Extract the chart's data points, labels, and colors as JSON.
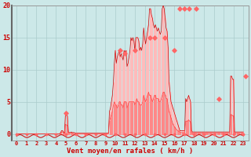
{
  "bg_color": "#cce8e8",
  "grid_color": "#aacccc",
  "xlabel": "Vent moyen/en rafales ( km/h )",
  "xlabel_color": "#cc0000",
  "ylim": [
    -1,
    20
  ],
  "yticks": [
    0,
    5,
    10,
    15,
    20
  ],
  "ytick_labels": [
    "0",
    "5",
    "10",
    "15",
    "20"
  ],
  "xlim": [
    -0.5,
    23.5
  ],
  "xticks": [
    0,
    1,
    2,
    3,
    4,
    5,
    6,
    7,
    8,
    9,
    10,
    11,
    12,
    13,
    14,
    15,
    16,
    17,
    18,
    19,
    20,
    21,
    22,
    23
  ],
  "color_gust_fill": "#ffbbbb",
  "color_avg_fill": "#ff8888",
  "color_line": "#cc0000",
  "color_marker": "#ff6666",
  "color_dark_marker": "#cc0000",
  "wave_color": "#cc0000",
  "left_spine_color": "#666666",
  "n_points": 240,
  "hours_per_point": 0.1,
  "gust_envelope": [
    0,
    0,
    0,
    0,
    0,
    0,
    0,
    0,
    0,
    0,
    0,
    0,
    0,
    0,
    0,
    0,
    0,
    0,
    0,
    0,
    0,
    0,
    0,
    0,
    0,
    0,
    0,
    0,
    0,
    0,
    0,
    0,
    0,
    0,
    0,
    0,
    0,
    0,
    0,
    0,
    0,
    0,
    0,
    0,
    0,
    0.2,
    0.5,
    0.5,
    0.3,
    0.1,
    3.2,
    3.0,
    2.8,
    0.3,
    0.2,
    0.2,
    0.3,
    0.2,
    0.2,
    0.2,
    0.1,
    0.1,
    0.1,
    0.1,
    0.1,
    0.1,
    0.1,
    0.1,
    0.1,
    0.1,
    0.1,
    0.1,
    0.1,
    0.1,
    0.1,
    0.1,
    0.1,
    0.1,
    0.1,
    0.1,
    0.1,
    0.1,
    0.1,
    0.1,
    0.1,
    0.1,
    0.1,
    0.1,
    0.1,
    0.1,
    0.1,
    0.1,
    0.1,
    0.1,
    0.1,
    3.5,
    4.0,
    5.0,
    6.0,
    8.0,
    11.0,
    13.0,
    11.0,
    12.0,
    12.5,
    13.0,
    12.0,
    12.5,
    12.0,
    11.5,
    13.0,
    12.5,
    13.0,
    10.5,
    11.0,
    12.0,
    13.0,
    15.0,
    14.5,
    15.0,
    14.5,
    13.0,
    15.0,
    15.0,
    15.0,
    14.5,
    13.0,
    13.5,
    13.0,
    14.0,
    16.5,
    15.0,
    14.0,
    15.0,
    16.0,
    17.0,
    19.5,
    19.5,
    18.5,
    18.0,
    17.0,
    16.5,
    17.0,
    16.5,
    16.0,
    16.5,
    16.0,
    15.5,
    16.0,
    19.5,
    20.0,
    19.5,
    18.0,
    16.5,
    16.0,
    13.5,
    8.0,
    6.5,
    5.0,
    4.5,
    4.0,
    3.5,
    3.0,
    2.5,
    2.0,
    1.5,
    1.0,
    0.5,
    0.5,
    0.5,
    0.5,
    0.5,
    0.5,
    5.5,
    5.0,
    5.5,
    6.0,
    5.5,
    5.0,
    0.5,
    0.3,
    0.3,
    0.3,
    0.3,
    0.3,
    0.3,
    0.3,
    0.3,
    0.3,
    0.3,
    0.3,
    0.3,
    0.3,
    0.3,
    0.3,
    0.3,
    0.3,
    0.3,
    0.3,
    0.3,
    0.3,
    0.3,
    0.3,
    0.3,
    0.3,
    0.3,
    0.3,
    0.3,
    0.3,
    0.3,
    0.3,
    0.3,
    0.3,
    0.3,
    0.3,
    0.3,
    0.3,
    0.3,
    0.3,
    9.0,
    9.0,
    8.5,
    8.5,
    0.3,
    0.3,
    0.3,
    0.3,
    0.3,
    0.3,
    0.3,
    0.3,
    0.3,
    0.3
  ],
  "avg_envelope": [
    0,
    0,
    0,
    0,
    0,
    0,
    0,
    0,
    0,
    0,
    0,
    0,
    0,
    0,
    0,
    0,
    0,
    0,
    0,
    0,
    0,
    0,
    0,
    0,
    0,
    0,
    0,
    0,
    0,
    0,
    0,
    0,
    0,
    0,
    0,
    0,
    0,
    0,
    0,
    0,
    0,
    0,
    0,
    0,
    0,
    0.1,
    0.3,
    0.3,
    0.2,
    0.1,
    1.5,
    1.4,
    1.3,
    0.2,
    0.1,
    0.1,
    0.1,
    0.1,
    0.1,
    0.1,
    0.05,
    0.05,
    0.05,
    0.05,
    0.05,
    0.05,
    0.05,
    0.05,
    0.05,
    0.05,
    0.05,
    0.05,
    0.05,
    0.05,
    0.05,
    0.05,
    0.05,
    0.05,
    0.05,
    0.05,
    0.05,
    0.05,
    0.05,
    0.05,
    0.05,
    0.05,
    0.05,
    0.05,
    0.05,
    0.05,
    0.05,
    0.05,
    0.05,
    0.05,
    0.05,
    2.0,
    2.5,
    3.0,
    3.5,
    4.5,
    5.0,
    4.5,
    4.5,
    4.0,
    4.5,
    5.0,
    5.0,
    4.5,
    4.5,
    4.0,
    5.0,
    5.0,
    5.0,
    4.0,
    4.5,
    5.0,
    5.0,
    5.0,
    5.0,
    5.0,
    5.0,
    4.5,
    5.0,
    5.5,
    5.0,
    5.0,
    4.5,
    4.5,
    4.5,
    5.0,
    6.0,
    5.5,
    5.0,
    5.5,
    6.0,
    6.5,
    6.0,
    6.0,
    5.5,
    5.0,
    5.5,
    6.0,
    6.0,
    5.5,
    5.5,
    5.5,
    5.0,
    5.0,
    5.5,
    6.0,
    6.5,
    6.5,
    6.0,
    5.5,
    5.5,
    4.5,
    3.5,
    3.0,
    2.5,
    2.0,
    1.5,
    1.2,
    1.0,
    0.8,
    0.6,
    0.5,
    0.4,
    0.3,
    0.2,
    0.2,
    0.2,
    0.2,
    0.2,
    2.0,
    2.0,
    2.0,
    2.2,
    2.0,
    1.8,
    0.2,
    0.1,
    0.1,
    0.1,
    0.1,
    0.1,
    0.1,
    0.1,
    0.1,
    0.1,
    0.1,
    0.1,
    0.1,
    0.1,
    0.1,
    0.1,
    0.1,
    0.1,
    0.1,
    0.1,
    0.1,
    0.1,
    0.1,
    0.1,
    0.1,
    0.1,
    0.1,
    0.1,
    0.1,
    0.1,
    0.1,
    0.1,
    0.1,
    0.1,
    0.1,
    0.1,
    0.1,
    0.1,
    0.1,
    0.1,
    3.0,
    3.0,
    2.8,
    2.8,
    0.1,
    0.1,
    0.1,
    0.1,
    0.1,
    0.1,
    0.1,
    0.1,
    0.1,
    0.1
  ],
  "peak_markers_x": [
    5.0,
    10.5,
    11.0,
    12.0,
    13.5,
    14.0,
    15.0,
    16.0,
    16.5,
    17.0,
    17.5,
    18.2,
    20.5,
    23.2
  ],
  "peak_markers_y": [
    3.2,
    13.0,
    12.5,
    13.0,
    15.0,
    15.0,
    15.0,
    13.0,
    19.5,
    19.5,
    19.5,
    19.5,
    5.5,
    9.0
  ]
}
